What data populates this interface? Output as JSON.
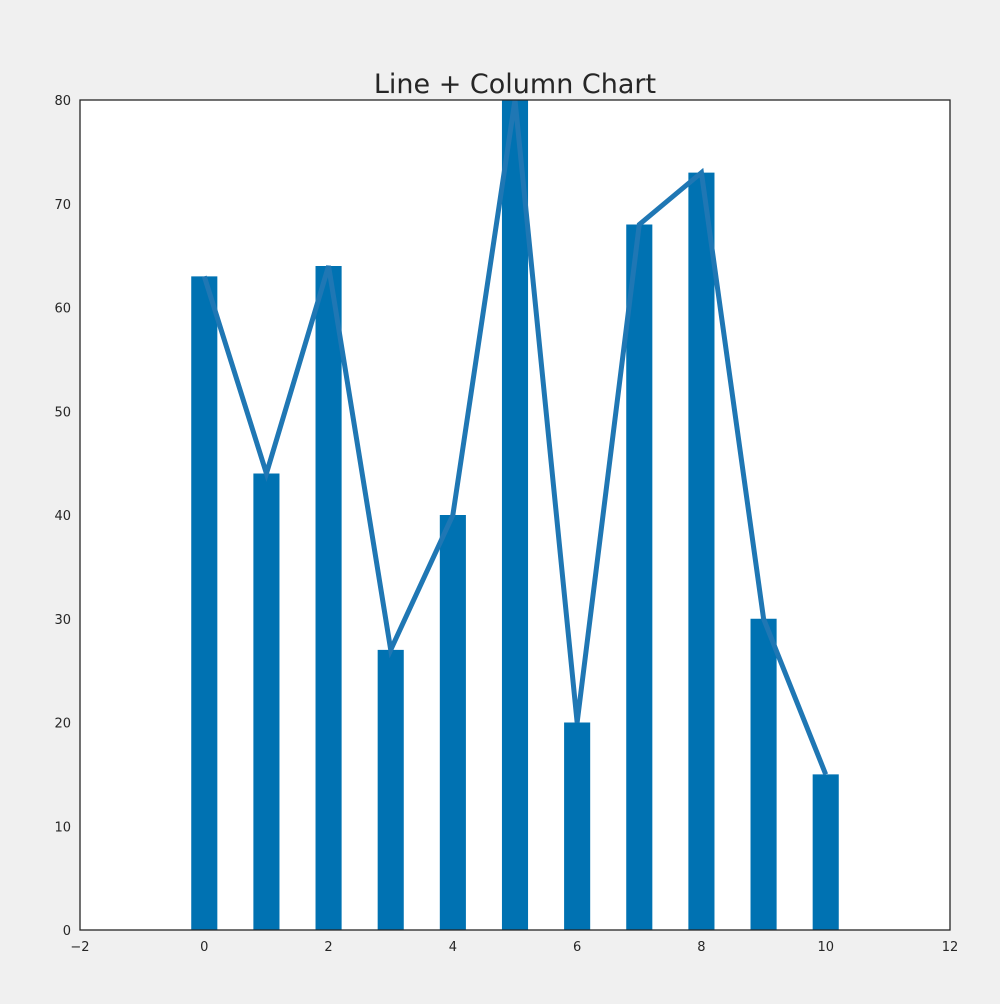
{
  "chart_data": {
    "type": "bar",
    "title": "Line + Column Chart",
    "xlabel": "",
    "ylabel": "",
    "x": [
      0,
      1,
      2,
      3,
      4,
      5,
      6,
      7,
      8,
      9,
      10
    ],
    "series": [
      {
        "kind": "bar",
        "values": [
          63,
          44,
          64,
          27,
          40,
          80,
          20,
          68,
          73,
          30,
          15
        ]
      },
      {
        "kind": "line",
        "values": [
          63,
          44,
          64,
          27,
          40,
          80,
          20,
          68,
          73,
          30,
          15
        ]
      }
    ],
    "xlim": [
      -2,
      12
    ],
    "ylim": [
      0,
      80
    ],
    "xticks": [
      -2,
      0,
      2,
      4,
      6,
      8,
      10,
      12
    ],
    "yticks": [
      0,
      10,
      20,
      30,
      40,
      50,
      60,
      70,
      80
    ],
    "xtick_labels": [
      "−2",
      "0",
      "2",
      "4",
      "6",
      "8",
      "10",
      "12"
    ],
    "ytick_labels": [
      "0",
      "10",
      "20",
      "30",
      "40",
      "50",
      "60",
      "70",
      "80"
    ],
    "bar_width": 0.42,
    "grid": false,
    "legend": "none",
    "colors": {
      "bar": "#0072b2",
      "line": "#1f77b4",
      "frame": "#262626",
      "plot_background": "#ffffff",
      "figure_background": "#f0f0f0"
    }
  }
}
